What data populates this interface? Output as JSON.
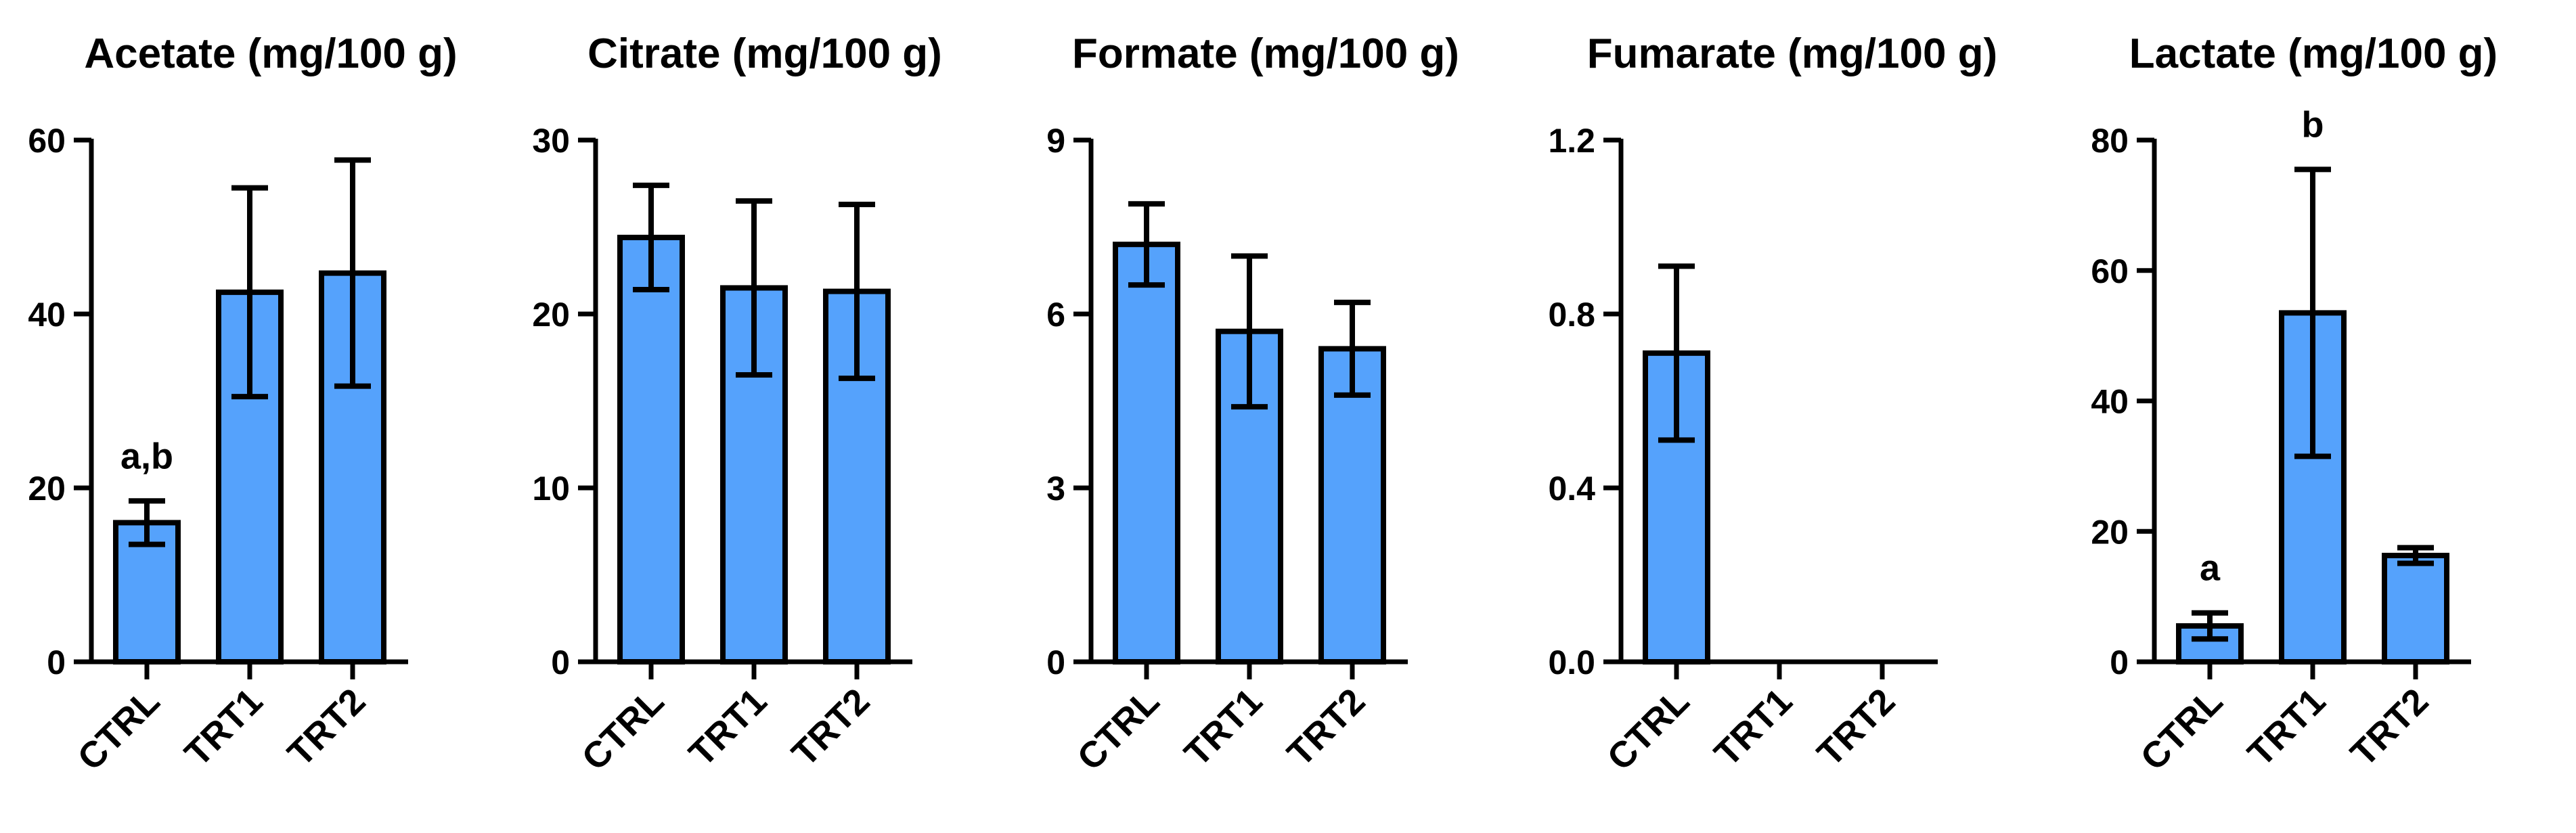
{
  "style": {
    "bar_color": "#55A2FC",
    "ink_color": "#000000"
  },
  "chart_data": [
    {
      "type": "bar",
      "title": "Acetate (mg/100 g)",
      "categories": [
        "CTRL",
        "TRT1",
        "TRT2"
      ],
      "values": [
        16,
        42.5,
        44.7
      ],
      "errors": [
        2.5,
        12,
        13
      ],
      "annotations": [
        "a,b",
        "",
        ""
      ],
      "yticks": [
        0,
        20,
        40,
        60
      ],
      "ylim": [
        0,
        60
      ]
    },
    {
      "type": "bar",
      "title": "Citrate (mg/100 g)",
      "categories": [
        "CTRL",
        "TRT1",
        "TRT2"
      ],
      "values": [
        24.4,
        21.5,
        21.3
      ],
      "errors": [
        3,
        5,
        5
      ],
      "annotations": [
        "",
        "",
        ""
      ],
      "yticks": [
        0,
        10,
        20,
        30
      ],
      "ylim": [
        0,
        30
      ]
    },
    {
      "type": "bar",
      "title": "Formate (mg/100 g)",
      "categories": [
        "CTRL",
        "TRT1",
        "TRT2"
      ],
      "values": [
        7.2,
        5.7,
        5.4
      ],
      "errors": [
        0.7,
        1.3,
        0.8
      ],
      "annotations": [
        "",
        "",
        ""
      ],
      "yticks": [
        0,
        3,
        6,
        9
      ],
      "ylim": [
        0,
        9
      ]
    },
    {
      "type": "bar",
      "title": "Fumarate (mg/100 g)",
      "categories": [
        "CTRL",
        "TRT1",
        "TRT2"
      ],
      "values": [
        0.71,
        0,
        0
      ],
      "errors": [
        0.2,
        0,
        0
      ],
      "annotations": [
        "",
        "",
        ""
      ],
      "yticks": [
        "0.0",
        "0.4",
        "0.8",
        "1.2"
      ],
      "ylim": [
        0,
        1.2
      ]
    },
    {
      "type": "bar",
      "title": "Lactate (mg/100 g)",
      "categories": [
        "CTRL",
        "TRT1",
        "TRT2"
      ],
      "values": [
        5.5,
        53.5,
        16.3
      ],
      "errors": [
        2,
        22,
        1.2
      ],
      "annotations": [
        "a",
        "b",
        ""
      ],
      "yticks": [
        0,
        20,
        40,
        60,
        80
      ],
      "ylim": [
        0,
        80
      ]
    }
  ]
}
